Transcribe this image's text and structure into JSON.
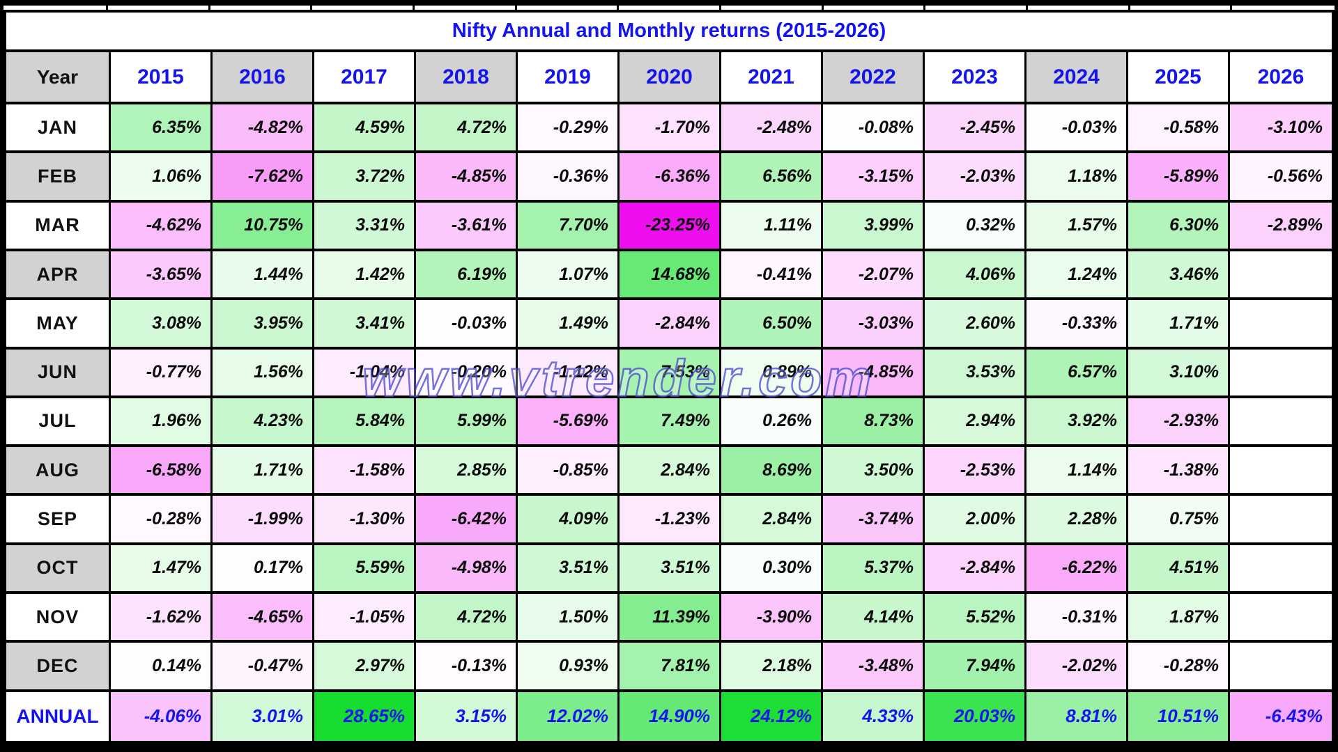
{
  "chart_data": {
    "type": "heatmap",
    "title": "Nifty Annual and Monthly returns (2015-2026)",
    "corner_label": "Year",
    "columns": [
      "2015",
      "2016",
      "2017",
      "2018",
      "2019",
      "2020",
      "2021",
      "2022",
      "2023",
      "2024",
      "2025",
      "2026"
    ],
    "header_shaded": [
      false,
      true,
      false,
      true,
      false,
      true,
      false,
      true,
      false,
      true,
      false,
      false
    ],
    "value_format": "percent_2dp",
    "rows": [
      {
        "label": "JAN",
        "shaded": false,
        "values": [
          6.35,
          -4.82,
          4.59,
          4.72,
          -0.29,
          -1.7,
          -2.48,
          -0.08,
          -2.45,
          -0.03,
          -0.58,
          -3.1
        ]
      },
      {
        "label": "FEB",
        "shaded": true,
        "values": [
          1.06,
          -7.62,
          3.72,
          -4.85,
          -0.36,
          -6.36,
          6.56,
          -3.15,
          -2.03,
          1.18,
          -5.89,
          -0.56
        ]
      },
      {
        "label": "MAR",
        "shaded": false,
        "values": [
          -4.62,
          10.75,
          3.31,
          -3.61,
          7.7,
          -23.25,
          1.11,
          3.99,
          0.32,
          1.57,
          6.3,
          -2.89
        ]
      },
      {
        "label": "APR",
        "shaded": true,
        "values": [
          -3.65,
          1.44,
          1.42,
          6.19,
          1.07,
          14.68,
          -0.41,
          -2.07,
          4.06,
          1.24,
          3.46,
          null
        ]
      },
      {
        "label": "MAY",
        "shaded": false,
        "values": [
          3.08,
          3.95,
          3.41,
          -0.03,
          1.49,
          -2.84,
          6.5,
          -3.03,
          2.6,
          -0.33,
          1.71,
          null
        ]
      },
      {
        "label": "JUN",
        "shaded": true,
        "values": [
          -0.77,
          1.56,
          -1.04,
          -0.2,
          -1.12,
          7.53,
          0.89,
          -4.85,
          3.53,
          6.57,
          3.1,
          null
        ]
      },
      {
        "label": "JUL",
        "shaded": false,
        "values": [
          1.96,
          4.23,
          5.84,
          5.99,
          -5.69,
          7.49,
          0.26,
          8.73,
          2.94,
          3.92,
          -2.93,
          null
        ]
      },
      {
        "label": "AUG",
        "shaded": true,
        "values": [
          -6.58,
          1.71,
          -1.58,
          2.85,
          -0.85,
          2.84,
          8.69,
          3.5,
          -2.53,
          1.14,
          -1.38,
          null
        ]
      },
      {
        "label": "SEP",
        "shaded": false,
        "values": [
          -0.28,
          -1.99,
          -1.3,
          -6.42,
          4.09,
          -1.23,
          2.84,
          -3.74,
          2.0,
          2.28,
          0.75,
          null
        ]
      },
      {
        "label": "OCT",
        "shaded": true,
        "values": [
          1.47,
          0.17,
          5.59,
          -4.98,
          3.51,
          3.51,
          0.3,
          5.37,
          -2.84,
          -6.22,
          4.51,
          null
        ]
      },
      {
        "label": "NOV",
        "shaded": false,
        "values": [
          -1.62,
          -4.65,
          -1.05,
          4.72,
          1.5,
          11.39,
          -3.9,
          4.14,
          5.52,
          -0.31,
          1.87,
          null
        ]
      },
      {
        "label": "DEC",
        "shaded": true,
        "values": [
          0.14,
          -0.47,
          2.97,
          -0.13,
          0.93,
          7.81,
          2.18,
          -3.48,
          7.94,
          -2.02,
          -0.28,
          null
        ]
      }
    ],
    "annual_row": {
      "label": "ANNUAL",
      "shaded": false,
      "values": [
        -4.06,
        3.01,
        28.65,
        3.15,
        12.02,
        14.9,
        24.12,
        4.33,
        20.03,
        8.81,
        10.51,
        -6.43
      ]
    },
    "color_scale": {
      "positive_max": "#16dd2e",
      "negative_max": "#ee00ee",
      "neutral": "#ffffff",
      "max_abs_percent": 25,
      "gamma": 0.8
    },
    "legend": "none",
    "grid": true
  },
  "watermark": "www.vtrender.com",
  "ui_colors": {
    "title_blue": "#1414ee",
    "header_gray": "#d2d2d2",
    "value_text": "#0a0a0a",
    "border": "#000000",
    "frame": "#000000",
    "background": "#ffffff"
  }
}
